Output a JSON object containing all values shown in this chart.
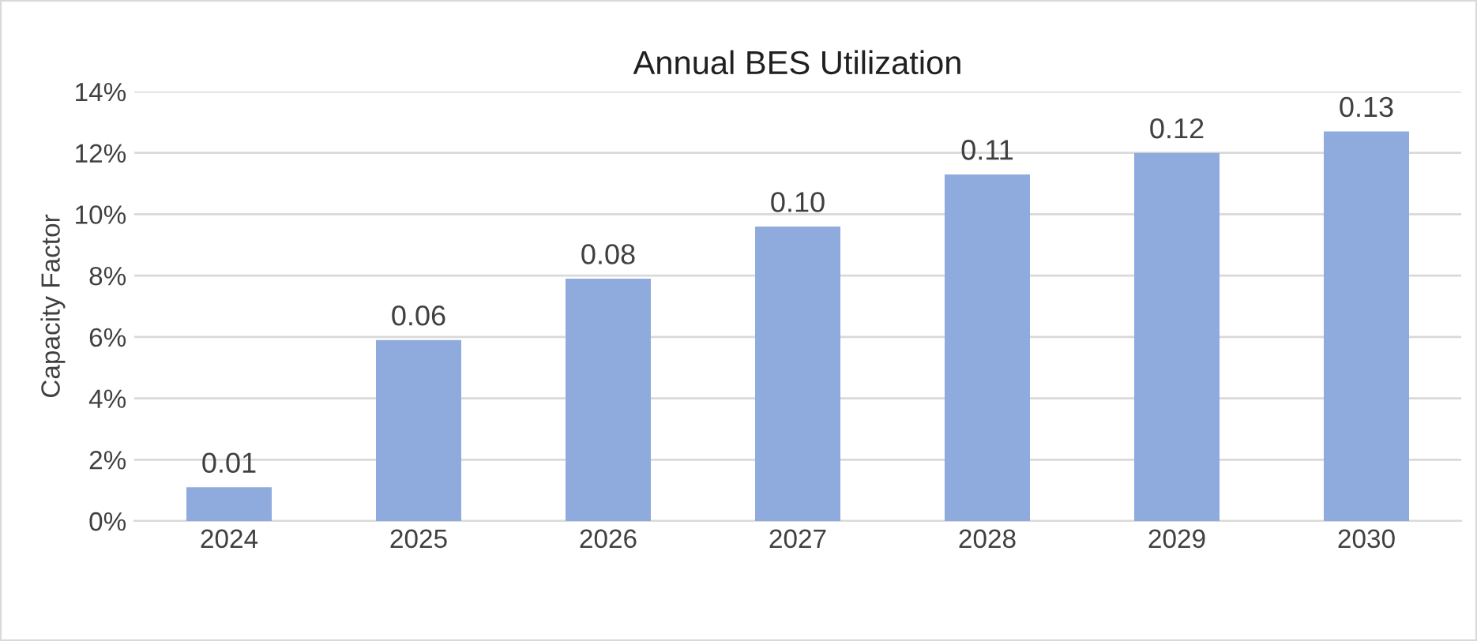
{
  "chart_data": {
    "type": "bar",
    "title": "Annual BES Utilization",
    "ylabel": "Capacity Factor",
    "categories": [
      "2024",
      "2025",
      "2026",
      "2027",
      "2028",
      "2029",
      "2030"
    ],
    "values": [
      0.011,
      0.059,
      0.079,
      0.096,
      0.113,
      0.12,
      0.127
    ],
    "value_labels": [
      "0.01",
      "0.06",
      "0.08",
      "0.10",
      "0.11",
      "0.12",
      "0.13"
    ],
    "color": "#8faadc",
    "ylim": [
      0,
      0.14
    ],
    "yticks": [
      {
        "value": 0,
        "label": "0%"
      },
      {
        "value": 0.02,
        "label": "2%"
      },
      {
        "value": 0.04,
        "label": "4%"
      },
      {
        "value": 0.06,
        "label": "6%"
      },
      {
        "value": 0.08,
        "label": "8%"
      },
      {
        "value": 0.1,
        "label": "10%"
      },
      {
        "value": 0.12,
        "label": "12%"
      },
      {
        "value": 0.14,
        "label": "14%"
      }
    ],
    "grid": "y"
  }
}
